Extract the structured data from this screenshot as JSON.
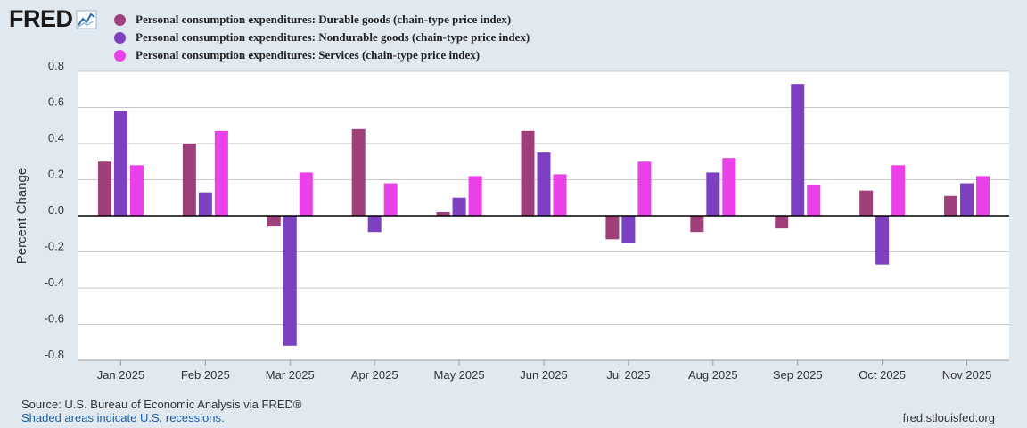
{
  "brand": {
    "logo_text": "FRED",
    "url": "fred.stlouisfed.org"
  },
  "footer": {
    "source": "Source: U.S. Bureau of Economic Analysis via FRED®",
    "recession_note": "Shaded areas indicate U.S. recessions."
  },
  "chart_data": {
    "type": "bar",
    "ylabel": "Percent Change",
    "ylim": [
      -0.8,
      0.8
    ],
    "yticks": [
      0.8,
      0.6,
      0.4,
      0.2,
      0.0,
      -0.2,
      -0.4,
      -0.6,
      -0.8
    ],
    "ytick_labels": [
      "0.8",
      "0.6",
      "0.4",
      "0.2",
      "0.0",
      "-0.2",
      "-0.4",
      "-0.6",
      "-0.8"
    ],
    "categories": [
      "Jan 2025",
      "Feb 2025",
      "Mar 2025",
      "Apr 2025",
      "May 2025",
      "Jun 2025",
      "Jul 2025",
      "Aug 2025",
      "Sep 2025",
      "Oct 2025",
      "Nov 2025"
    ],
    "legend_position": "top-left",
    "grid": true,
    "series": [
      {
        "name": "Personal consumption expenditures: Durable goods (chain-type price index)",
        "color": "#a0407a",
        "values": [
          0.3,
          0.4,
          -0.06,
          0.48,
          0.02,
          0.47,
          -0.13,
          -0.09,
          -0.07,
          0.14,
          0.11
        ]
      },
      {
        "name": "Personal consumption expenditures: Nondurable goods (chain-type price index)",
        "color": "#7d40c0",
        "values": [
          0.58,
          0.13,
          -0.72,
          -0.09,
          0.1,
          0.35,
          -0.15,
          0.24,
          0.73,
          -0.27,
          0.18
        ]
      },
      {
        "name": "Personal consumption expenditures: Services (chain-type price index)",
        "color": "#ea40e8",
        "values": [
          0.28,
          0.47,
          0.24,
          0.18,
          0.22,
          0.23,
          0.3,
          0.32,
          0.17,
          0.28,
          0.22
        ]
      }
    ]
  }
}
